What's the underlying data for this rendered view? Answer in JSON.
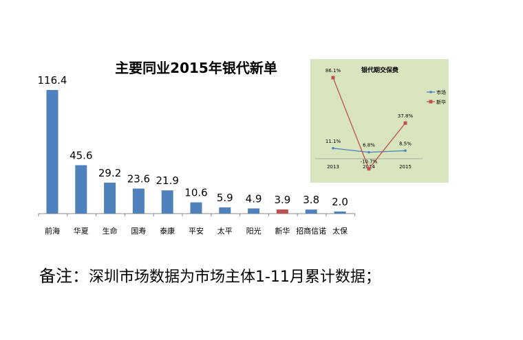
{
  "chart_data": [
    {
      "type": "bar",
      "title": "主要同业2015年银代新单",
      "categories": [
        "前海",
        "华夏",
        "生命",
        "国寿",
        "泰康",
        "平安",
        "太平",
        "阳光",
        "新华",
        "招商信诺",
        "太保"
      ],
      "values": [
        116.4,
        45.6,
        29.2,
        23.6,
        21.9,
        10.6,
        5.9,
        4.9,
        3.9,
        3.8,
        2.0
      ],
      "value_labels": [
        "116.4",
        "45.6",
        "29.2",
        "23.6",
        "21.9",
        "10.6",
        "5.9",
        "4.9",
        "3.9",
        "3.8",
        "2.0"
      ],
      "colors": {
        "default": "#4f81bd",
        "highlight": "#c0504d"
      },
      "highlight_category": "新华",
      "grid": false,
      "ylabel": "",
      "xlabel": ""
    },
    {
      "type": "line",
      "title": "银代期交保费",
      "categories": [
        "2013",
        "2014",
        "2015"
      ],
      "series": [
        {
          "name": "市场",
          "values": [
            11.1,
            6.8,
            8.5
          ],
          "labels": [
            "11.1%",
            "6.8%",
            "8.5%"
          ],
          "color": "#4f81bd"
        },
        {
          "name": "新华",
          "values": [
            86.1,
            -10.7,
            37.8
          ],
          "labels": [
            "86.1%",
            "-10.7%",
            "37.8%"
          ],
          "color": "#c0504d"
        }
      ],
      "background": "#d7e4bd",
      "legend": "right",
      "grid": false
    }
  ],
  "note": {
    "prefix": "备注：",
    "text": "深圳市场数据为市场主体1-11月累计数据；"
  }
}
